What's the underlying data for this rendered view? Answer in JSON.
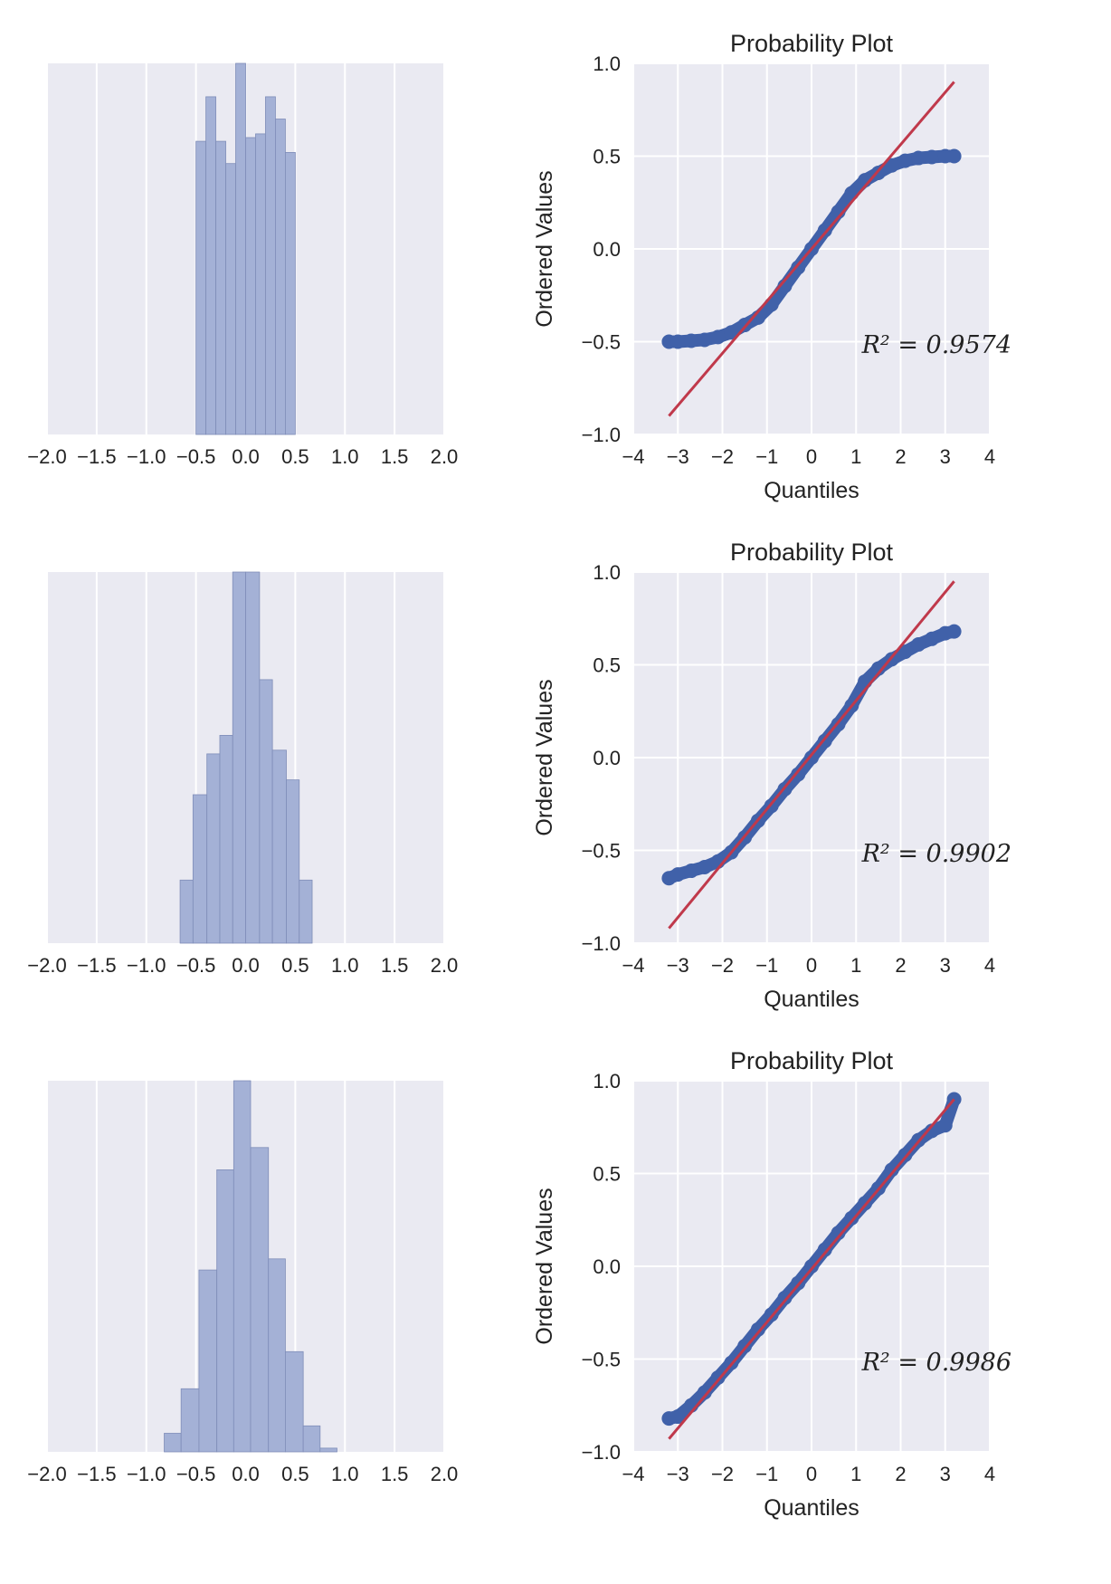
{
  "colors": {
    "axes_bg": "#EAEAF2",
    "grid": "#FFFFFF",
    "bar_fill": "#A4B1D6",
    "bar_edge": "#7F8DB8",
    "points": "#4061A9",
    "fit_line": "#C0394B"
  },
  "charts": [
    {
      "type": "bar",
      "kind": "histogram",
      "xlim": [
        -2.0,
        2.0
      ],
      "xticks": [
        "−2.0",
        "−1.5",
        "−1.0",
        "−0.5",
        "0.0",
        "0.5",
        "1.0",
        "1.5",
        "2.0"
      ],
      "grid": true,
      "bins": [
        [
          -0.5,
          -0.4
        ],
        [
          -0.4,
          -0.3
        ],
        [
          -0.3,
          -0.2
        ],
        [
          -0.2,
          -0.1
        ],
        [
          -0.1,
          0.0
        ],
        [
          0.0,
          0.1
        ],
        [
          0.1,
          0.2
        ],
        [
          0.2,
          0.3
        ],
        [
          0.3,
          0.4
        ],
        [
          0.4,
          0.5
        ]
      ],
      "values": [
        0.79,
        0.91,
        0.79,
        0.73,
        1.0,
        0.8,
        0.81,
        0.91,
        0.85,
        0.76
      ],
      "title": "",
      "xlabel": "",
      "ylabel": ""
    },
    {
      "type": "scatter",
      "kind": "probability-plot",
      "title": "Probability Plot",
      "xlabel": "Quantiles",
      "ylabel": "Ordered Values",
      "xlim": [
        -4,
        4
      ],
      "ylim": [
        -1.0,
        1.0
      ],
      "xticks": [
        "−4",
        "−3",
        "−2",
        "−1",
        "0",
        "1",
        "2",
        "3",
        "4"
      ],
      "yticks": [
        "−1.0",
        "−0.5",
        "0.0",
        "0.5",
        "1.0"
      ],
      "grid": true,
      "fit_line": {
        "x": [
          -3.2,
          3.2
        ],
        "y": [
          -0.9,
          0.9
        ]
      },
      "points": {
        "x": [
          -3.2,
          -3.0,
          -2.7,
          -2.4,
          -2.1,
          -1.8,
          -1.5,
          -1.2,
          -0.9,
          -0.6,
          -0.3,
          0.0,
          0.3,
          0.6,
          0.9,
          1.2,
          1.5,
          1.8,
          2.1,
          2.4,
          2.7,
          3.0,
          3.2
        ],
        "y": [
          -0.5,
          -0.5,
          -0.495,
          -0.49,
          -0.475,
          -0.45,
          -0.41,
          -0.37,
          -0.3,
          -0.2,
          -0.1,
          0.0,
          0.1,
          0.2,
          0.3,
          0.37,
          0.41,
          0.45,
          0.475,
          0.49,
          0.495,
          0.5,
          0.5
        ]
      },
      "r_squared": "R² = 0.9574"
    },
    {
      "type": "bar",
      "kind": "histogram",
      "xlim": [
        -2.0,
        2.0
      ],
      "xticks": [
        "−2.0",
        "−1.5",
        "−1.0",
        "−0.5",
        "0.0",
        "0.5",
        "1.0",
        "1.5",
        "2.0"
      ],
      "grid": true,
      "bins": [
        [
          -0.66,
          -0.53
        ],
        [
          -0.53,
          -0.39
        ],
        [
          -0.39,
          -0.26
        ],
        [
          -0.26,
          -0.13
        ],
        [
          -0.13,
          0.0
        ],
        [
          0.0,
          0.14
        ],
        [
          0.14,
          0.27
        ],
        [
          0.27,
          0.41
        ],
        [
          0.41,
          0.54
        ],
        [
          0.54,
          0.67
        ]
      ],
      "values": [
        0.17,
        0.4,
        0.51,
        0.56,
        1.0,
        1.0,
        0.71,
        0.52,
        0.44,
        0.17
      ],
      "title": "",
      "xlabel": "",
      "ylabel": ""
    },
    {
      "type": "scatter",
      "kind": "probability-plot",
      "title": "Probability Plot",
      "xlabel": "Quantiles",
      "ylabel": "Ordered Values",
      "xlim": [
        -4,
        4
      ],
      "ylim": [
        -1.0,
        1.0
      ],
      "xticks": [
        "−4",
        "−3",
        "−2",
        "−1",
        "0",
        "1",
        "2",
        "3",
        "4"
      ],
      "yticks": [
        "−1.0",
        "−0.5",
        "0.0",
        "0.5",
        "1.0"
      ],
      "grid": true,
      "fit_line": {
        "x": [
          -3.2,
          3.2
        ],
        "y": [
          -0.92,
          0.95
        ]
      },
      "points": {
        "x": [
          -3.2,
          -3.0,
          -2.7,
          -2.4,
          -2.1,
          -1.8,
          -1.5,
          -1.2,
          -0.9,
          -0.6,
          -0.3,
          0.0,
          0.3,
          0.6,
          0.9,
          1.2,
          1.5,
          1.8,
          2.1,
          2.4,
          2.7,
          3.0,
          3.2
        ],
        "y": [
          -0.65,
          -0.63,
          -0.61,
          -0.59,
          -0.56,
          -0.51,
          -0.43,
          -0.34,
          -0.26,
          -0.17,
          -0.09,
          0.0,
          0.09,
          0.18,
          0.28,
          0.41,
          0.48,
          0.53,
          0.57,
          0.61,
          0.64,
          0.67,
          0.68
        ]
      },
      "r_squared": "R² = 0.9902"
    },
    {
      "type": "bar",
      "kind": "histogram",
      "xlim": [
        -2.0,
        2.0
      ],
      "xticks": [
        "−2.0",
        "−1.5",
        "−1.0",
        "−0.5",
        "0.0",
        "0.5",
        "1.0",
        "1.5",
        "2.0"
      ],
      "grid": true,
      "bins": [
        [
          -0.82,
          -0.65
        ],
        [
          -0.65,
          -0.47
        ],
        [
          -0.47,
          -0.29
        ],
        [
          -0.29,
          -0.12
        ],
        [
          -0.12,
          0.05
        ],
        [
          0.05,
          0.23
        ],
        [
          0.23,
          0.4
        ],
        [
          0.4,
          0.58
        ],
        [
          0.58,
          0.75
        ],
        [
          0.75,
          0.92
        ]
      ],
      "values": [
        0.05,
        0.17,
        0.49,
        0.76,
        1.0,
        0.82,
        0.52,
        0.27,
        0.07,
        0.01
      ],
      "title": "",
      "xlabel": "",
      "ylabel": ""
    },
    {
      "type": "scatter",
      "kind": "probability-plot",
      "title": "Probability Plot",
      "xlabel": "Quantiles",
      "ylabel": "Ordered Values",
      "xlim": [
        -4,
        4
      ],
      "ylim": [
        -1.0,
        1.0
      ],
      "xticks": [
        "−4",
        "−3",
        "−2",
        "−1",
        "0",
        "1",
        "2",
        "3",
        "4"
      ],
      "yticks": [
        "−1.0",
        "−0.5",
        "0.0",
        "0.5",
        "1.0"
      ],
      "grid": true,
      "fit_line": {
        "x": [
          -3.2,
          3.2
        ],
        "y": [
          -0.93,
          0.9
        ]
      },
      "points": {
        "x": [
          -3.2,
          -3.0,
          -2.7,
          -2.4,
          -2.1,
          -1.8,
          -1.5,
          -1.2,
          -0.9,
          -0.6,
          -0.3,
          0.0,
          0.3,
          0.6,
          0.9,
          1.2,
          1.5,
          1.8,
          2.1,
          2.4,
          2.7,
          3.0,
          3.2
        ],
        "y": [
          -0.82,
          -0.81,
          -0.75,
          -0.68,
          -0.6,
          -0.52,
          -0.43,
          -0.34,
          -0.26,
          -0.17,
          -0.09,
          0.0,
          0.09,
          0.18,
          0.26,
          0.34,
          0.42,
          0.52,
          0.6,
          0.68,
          0.73,
          0.76,
          0.9
        ]
      },
      "r_squared": "R² = 0.9986"
    }
  ]
}
